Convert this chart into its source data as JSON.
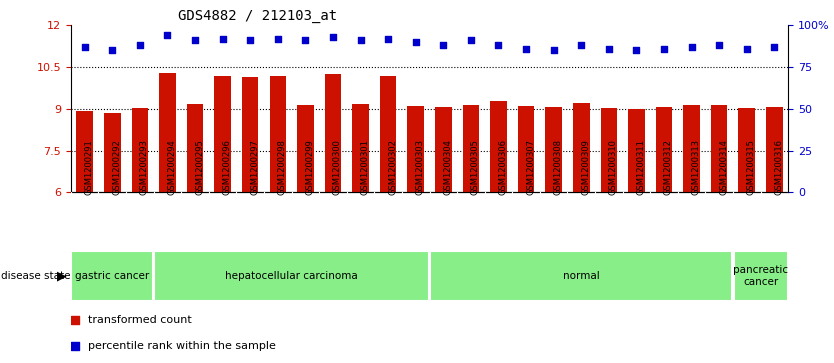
{
  "title": "GDS4882 / 212103_at",
  "samples": [
    "GSM1200291",
    "GSM1200292",
    "GSM1200293",
    "GSM1200294",
    "GSM1200295",
    "GSM1200296",
    "GSM1200297",
    "GSM1200298",
    "GSM1200299",
    "GSM1200300",
    "GSM1200301",
    "GSM1200302",
    "GSM1200303",
    "GSM1200304",
    "GSM1200305",
    "GSM1200306",
    "GSM1200307",
    "GSM1200308",
    "GSM1200309",
    "GSM1200310",
    "GSM1200311",
    "GSM1200312",
    "GSM1200313",
    "GSM1200314",
    "GSM1200315",
    "GSM1200316"
  ],
  "bar_values": [
    8.93,
    8.85,
    9.03,
    10.3,
    9.18,
    10.2,
    10.15,
    10.2,
    9.13,
    10.27,
    9.17,
    10.2,
    9.12,
    9.08,
    9.15,
    9.3,
    9.1,
    9.08,
    9.2,
    9.05,
    9.0,
    9.08,
    9.14,
    9.13,
    9.05,
    9.08
  ],
  "percentile_values": [
    87,
    85,
    88,
    94,
    91,
    92,
    91,
    92,
    91,
    93,
    91,
    92,
    90,
    88,
    91,
    88,
    86,
    85,
    88,
    86,
    85,
    86,
    87,
    88,
    86,
    87
  ],
  "bar_color": "#cc1100",
  "dot_color": "#0000cc",
  "ylim_left": [
    6,
    12
  ],
  "ylim_right": [
    0,
    100
  ],
  "yticks_left": [
    6,
    7.5,
    9,
    10.5,
    12
  ],
  "ytick_labels_left": [
    "6",
    "7.5",
    "9",
    "10.5",
    "12"
  ],
  "yticks_right": [
    0,
    25,
    50,
    75,
    100
  ],
  "ytick_labels_right": [
    "0",
    "25",
    "50",
    "75",
    "100%"
  ],
  "hlines": [
    7.5,
    9.0,
    10.5
  ],
  "disease_groups": [
    {
      "label": "gastric cancer",
      "start": 0,
      "end": 3
    },
    {
      "label": "hepatocellular carcinoma",
      "start": 3,
      "end": 13
    },
    {
      "label": "normal",
      "start": 13,
      "end": 24
    },
    {
      "label": "pancreatic\ncancer",
      "start": 24,
      "end": 26
    }
  ],
  "disease_bar_color": "#88ee88",
  "legend_items": [
    {
      "label": "transformed count",
      "color": "#cc1100"
    },
    {
      "label": "percentile rank within the sample",
      "color": "#0000cc"
    }
  ],
  "xlabel_bg_color": "#cccccc",
  "disease_state_label": "disease state",
  "disease_state_arrow": "▶"
}
